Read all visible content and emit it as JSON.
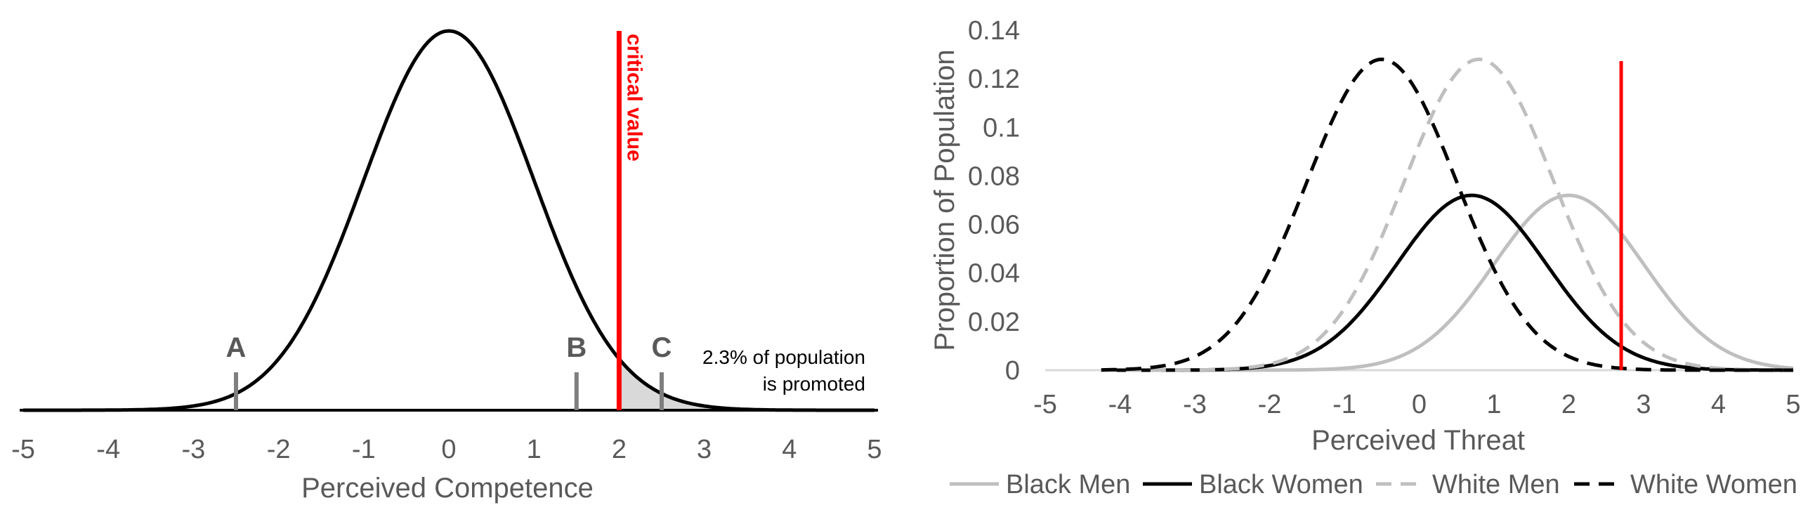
{
  "chart_data": [
    {
      "type": "line",
      "title": "",
      "xlabel": "Perceived Competence",
      "ylabel": "",
      "xlim": [
        -5,
        5
      ],
      "x_ticks": [
        "-5",
        "-4",
        "-3",
        "-2",
        "-1",
        "0",
        "1",
        "2",
        "3",
        "4",
        "5"
      ],
      "series": [
        {
          "distribution": "normal",
          "mean": 0,
          "sd": 1,
          "color": "#000000"
        }
      ],
      "critical_value": {
        "x": 2,
        "label": "critical value",
        "color": "#ff0000"
      },
      "shaded_region": {
        "from": 2,
        "to": 5,
        "color": "#d9d9d9"
      },
      "markers": [
        {
          "label": "A",
          "x": -2.5
        },
        {
          "label": "B",
          "x": 1.5
        },
        {
          "label": "C",
          "x": 2.5
        }
      ],
      "annotation": [
        "2.3% of population",
        "is promoted"
      ]
    },
    {
      "type": "line",
      "title": "",
      "xlabel": "Perceived Threat",
      "ylabel": "Proportion of Population",
      "xlim": [
        -5,
        5
      ],
      "ylim": [
        0,
        0.14
      ],
      "x_ticks": [
        "-5",
        "-4",
        "-3",
        "-2",
        "-1",
        "0",
        "1",
        "2",
        "3",
        "4",
        "5"
      ],
      "y_ticks": [
        "0",
        "0.02",
        "0.04",
        "0.06",
        "0.08",
        "0.1",
        "0.12",
        "0.14"
      ],
      "legend": "bottom",
      "series": [
        {
          "name": "Black Men",
          "distribution": "normal",
          "mean": 2,
          "peak": 0.072,
          "sd": 1,
          "color": "#bfbfbf",
          "dash": "solid"
        },
        {
          "name": "Black Women",
          "distribution": "normal",
          "mean": 0.7,
          "peak": 0.072,
          "sd": 1,
          "color": "#000000",
          "dash": "solid"
        },
        {
          "name": "White Men",
          "distribution": "normal",
          "mean": 0.8,
          "peak": 0.128,
          "sd": 1,
          "color": "#bfbfbf",
          "dash": "dashed"
        },
        {
          "name": "White Women",
          "distribution": "normal",
          "mean": -0.5,
          "peak": 0.128,
          "sd": 1,
          "color": "#000000",
          "dash": "dashed"
        }
      ],
      "critical_value": {
        "x": 2.7,
        "color": "#ff0000"
      }
    }
  ]
}
